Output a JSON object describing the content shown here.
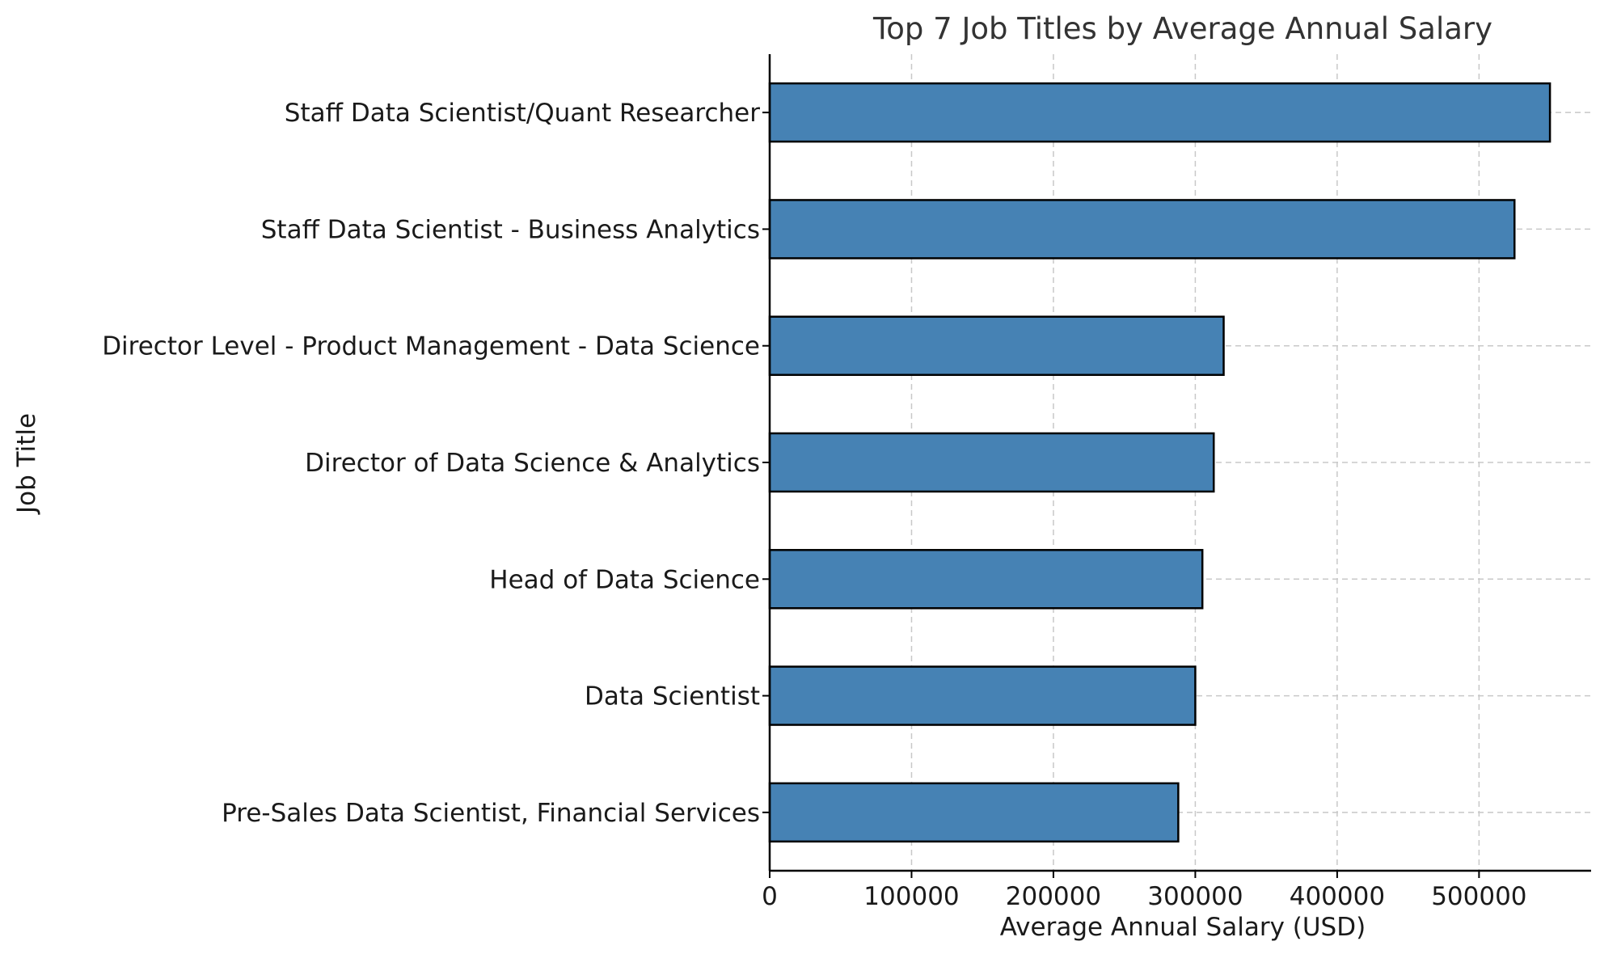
{
  "chart_data": {
    "type": "bar",
    "orientation": "horizontal",
    "title": "Top 7 Job Titles by Average Annual Salary",
    "xlabel": "Average Annual Salary (USD)",
    "ylabel": "Job Title",
    "categories": [
      "Staff Data Scientist/Quant Researcher",
      "Staff Data Scientist - Business Analytics",
      "Director Level - Product Management - Data Science",
      "Director of Data Science & Analytics",
      "Head of Data Science",
      "Data Scientist",
      "Pre-Sales Data Scientist, Financial Services"
    ],
    "values": [
      550000,
      525000,
      320000,
      313000,
      305000,
      300000,
      288000
    ],
    "xlim": [
      0,
      579000
    ],
    "xticks": [
      0,
      100000,
      200000,
      300000,
      400000,
      500000
    ],
    "xtick_labels": [
      "0",
      "100000",
      "200000",
      "300000",
      "400000",
      "500000"
    ],
    "grid": true,
    "bar_color": "#4682b4",
    "edge_color": "#000000"
  }
}
